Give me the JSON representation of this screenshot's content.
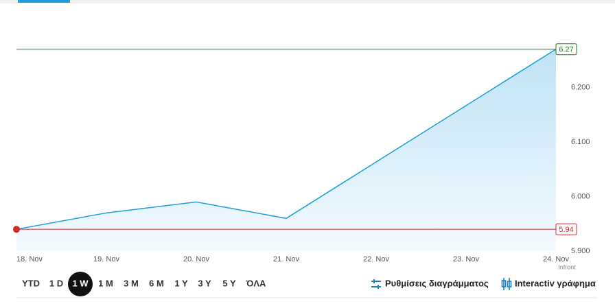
{
  "chart_data": {
    "type": "line",
    "categories": [
      "18. Nov",
      "19. Nov",
      "20. Nov",
      "21. Nov",
      "22. Nov",
      "23. Nov",
      "24. Nov"
    ],
    "x": [
      "18. Nov",
      "19. Nov",
      "20. Nov",
      "21. Nov",
      "24. Nov"
    ],
    "series": [
      {
        "color": "#1b9ddb",
        "values": [
          5.94,
          5.97,
          5.99,
          5.96,
          6.27
        ]
      }
    ],
    "ylim": [
      5.9,
      6.335
    ],
    "yticks": [
      {
        "value": 5.9,
        "label": "5.900"
      },
      {
        "value": 6.0,
        "label": "6.000"
      },
      {
        "value": 6.1,
        "label": "6.100"
      },
      {
        "value": 6.2,
        "label": "6.200"
      }
    ],
    "reference_lines": [
      {
        "value": 6.27,
        "color": "#1a7a1a"
      },
      {
        "value": 5.94,
        "color": "#d42a2a"
      }
    ],
    "source": "Infront"
  },
  "ranges": [
    "YTD",
    "1 D",
    "1 W",
    "1 M",
    "3 M",
    "6 M",
    "1 Y",
    "3 Y",
    "5 Y",
    "ΌΛΑ"
  ],
  "active_range": 2,
  "tools": [
    "Ρυθμίσεις διαγράμματος",
    "Interactiv γράφημα"
  ]
}
